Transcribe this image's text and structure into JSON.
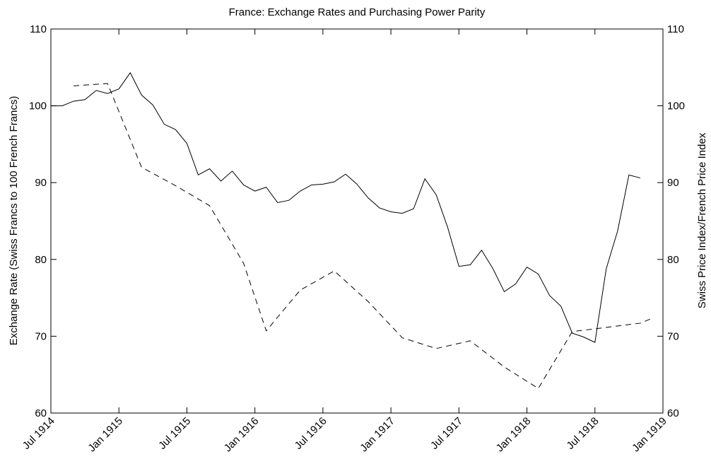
{
  "chart_data": {
    "type": "line",
    "title": "France: Exchange Rates and Purchasing Power Parity",
    "ylabel": "Exchange Rate (Swiss Francs to 100 French Francs)",
    "y2label": "Swiss Price Index/French Price Index",
    "xlim": [
      "1914-07",
      "1919-01"
    ],
    "xticks": [
      {
        "value": "1914-07",
        "label": "Jul 1914"
      },
      {
        "value": "1915-01",
        "label": "Jan 1915"
      },
      {
        "value": "1915-07",
        "label": "Jul 1915"
      },
      {
        "value": "1916-01",
        "label": "Jan 1916"
      },
      {
        "value": "1916-07",
        "label": "Jul 1916"
      },
      {
        "value": "1917-01",
        "label": "Jan 1917"
      },
      {
        "value": "1917-07",
        "label": "Jul 1917"
      },
      {
        "value": "1918-01",
        "label": "Jan 1918"
      },
      {
        "value": "1918-07",
        "label": "Jul 1918"
      },
      {
        "value": "1919-01",
        "label": "Jan 1919"
      }
    ],
    "ylim": [
      60,
      110
    ],
    "yticks": [
      60,
      70,
      80,
      90,
      100,
      110
    ],
    "y2lim": [
      60,
      110
    ],
    "y2ticks": [
      60,
      70,
      80,
      90,
      100,
      110
    ],
    "series": [
      {
        "color": "#000000",
        "dashed": false,
        "x": [
          "1914-07",
          "1914-08",
          "1914-09",
          "1914-10",
          "1914-11",
          "1914-12",
          "1915-01",
          "1915-02",
          "1915-03",
          "1915-04",
          "1915-05",
          "1915-06",
          "1915-07",
          "1915-08",
          "1915-09",
          "1915-10",
          "1915-11",
          "1915-12",
          "1916-01",
          "1916-02",
          "1916-03",
          "1916-04",
          "1916-05",
          "1916-06",
          "1916-07",
          "1916-08",
          "1916-09",
          "1916-10",
          "1916-11",
          "1916-12",
          "1917-01",
          "1917-02",
          "1917-03",
          "1917-04",
          "1917-05",
          "1917-06",
          "1917-07",
          "1917-08",
          "1917-09",
          "1917-10",
          "1917-11",
          "1917-12",
          "1918-01",
          "1918-02",
          "1918-03",
          "1918-04",
          "1918-05",
          "1918-06",
          "1918-07",
          "1918-08",
          "1918-09",
          "1918-10",
          "1918-11"
        ],
        "values": [
          100,
          100,
          100.6,
          100.8,
          102.0,
          101.6,
          102.2,
          104.3,
          101.4,
          100.1,
          97.6,
          96.9,
          95.1,
          91.0,
          91.8,
          90.2,
          91.5,
          89.7,
          88.9,
          89.4,
          87.4,
          87.7,
          88.9,
          89.7,
          89.8,
          90.1,
          91.1,
          89.8,
          88.0,
          86.7,
          86.2,
          86.0,
          86.6,
          90.5,
          88.4,
          84.2,
          79.1,
          79.3,
          81.2,
          78.8,
          75.8,
          76.8,
          79.0,
          78.1,
          75.3,
          73.9,
          70.4,
          69.9,
          69.2,
          78.8,
          83.7,
          91.0,
          90.6
        ]
      },
      {
        "color": "#000000",
        "dashed": true,
        "axis": "y2",
        "x": [
          "1914-09",
          "1914-12",
          "1915-03",
          "1915-06",
          "1915-09",
          "1915-12",
          "1916-02",
          "1916-05",
          "1916-08",
          "1916-11",
          "1917-02",
          "1917-05",
          "1917-08",
          "1917-11",
          "1918-02",
          "1918-05",
          "1918-11",
          "1918-12"
        ],
        "values": [
          102.6,
          102.9,
          92.0,
          89.6,
          87.0,
          79.5,
          70.7,
          76.0,
          78.5,
          74.5,
          69.8,
          68.4,
          69.4,
          66.0,
          63.2,
          70.6,
          71.7,
          72.3
        ]
      }
    ]
  }
}
